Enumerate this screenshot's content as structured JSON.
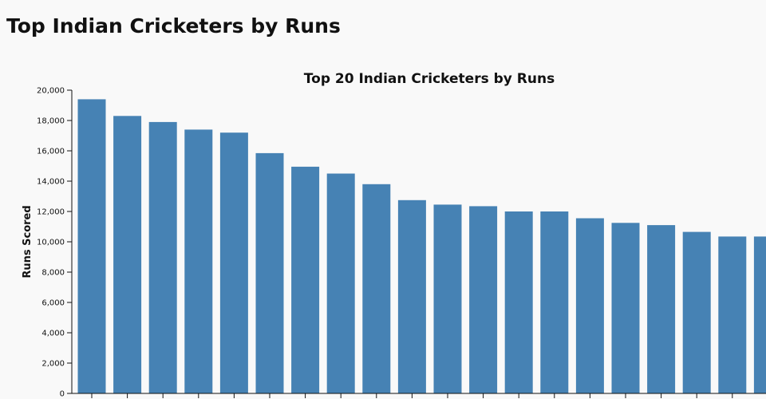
{
  "page": {
    "title": "Top Indian Cricketers by Runs"
  },
  "chart_data": {
    "type": "bar",
    "title": "Top 20 Indian Cricketers by Runs",
    "xlabel": "",
    "ylabel": "Runs Scored",
    "ylim": [
      0,
      20000
    ],
    "yticks": [
      0,
      2000,
      4000,
      6000,
      8000,
      10000,
      12000,
      14000,
      16000,
      18000,
      20000
    ],
    "grid": false,
    "bar_color": "#4682b4",
    "values": [
      19400,
      18300,
      17900,
      17400,
      17200,
      15850,
      14950,
      14500,
      13800,
      12750,
      12450,
      12350,
      12000,
      12000,
      11550,
      11250,
      11100,
      10650,
      10350,
      10350
    ]
  }
}
